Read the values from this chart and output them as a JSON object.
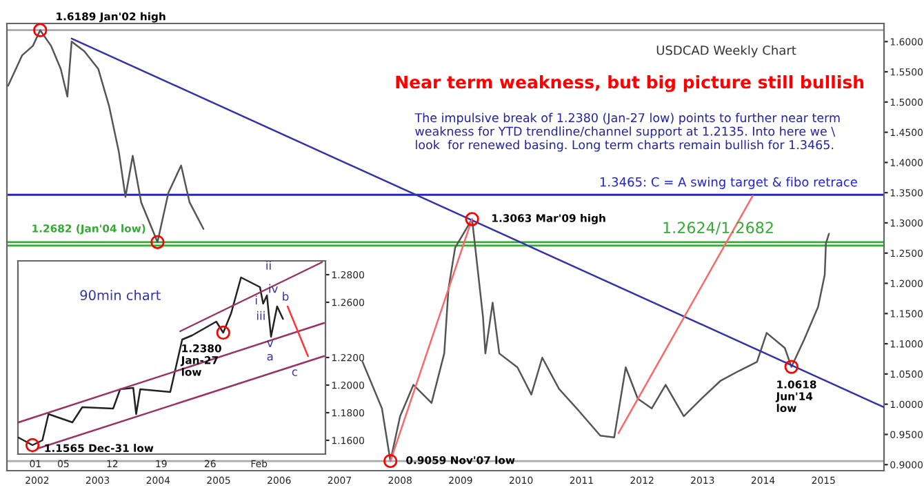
{
  "chart_data": [
    {
      "type": "line",
      "title": "USDCAD Weekly Chart",
      "subtitle": "Near term weakness, but big picture still bullish",
      "series": [
        {
          "color": "#555555",
          "x": [
            2001.52,
            2001.75,
            2001.93,
            2002.05,
            2002.23,
            2002.39,
            2002.5,
            2002.57,
            2002.78,
            2003.01,
            2003.19,
            2003.35,
            2003.46,
            2003.58,
            2003.72,
            2003.99,
            2004.17,
            2004.38,
            2004.52,
            2004.75,
            2005.5,
            2007.38,
            2007.7,
            2007.84,
            2008.0,
            2008.22,
            2008.52,
            2008.73,
            2008.8,
            2008.91,
            2009.19,
            2009.37,
            2009.41,
            2009.53,
            2009.64,
            2009.94,
            2010.17,
            2010.35,
            2010.63,
            2010.92,
            2011.31,
            2011.54,
            2011.73,
            2011.93,
            2012.16,
            2012.39,
            2012.69,
            2012.98,
            2013.3,
            2013.6,
            2013.9,
            2014.06,
            2014.36,
            2014.47,
            2014.68,
            2014.91,
            2015.02,
            2015.04,
            2015.09
          ],
          "values": [
            1.527,
            1.577,
            1.593,
            1.6189,
            1.593,
            1.555,
            1.509,
            1.6,
            1.584,
            1.555,
            1.493,
            1.418,
            1.343,
            1.411,
            1.334,
            1.2682,
            1.35,
            1.395,
            1.334,
            1.29,
            null,
            1.07,
            0.993,
            0.9059,
            0.98,
            1.032,
            1.002,
            1.084,
            1.191,
            1.259,
            1.3063,
            1.145,
            1.084,
            1.168,
            1.084,
            1.061,
            1.016,
            1.077,
            1.025,
            0.993,
            0.948,
            0.945,
            1.061,
            1.009,
            0.993,
            1.032,
            0.98,
            1.009,
            1.039,
            1.055,
            1.07,
            1.118,
            1.093,
            1.0618,
            1.107,
            1.161,
            1.214,
            1.266,
            1.282
          ]
        },
        {
          "type": "line",
          "color": "#3333aa",
          "x": [
            2002.57,
            2016.0
          ],
          "values": [
            1.605,
            0.995
          ]
        },
        {
          "type": "line",
          "color": "#ff6666",
          "x": [
            2007.84,
            2009.19
          ],
          "values": [
            0.9059,
            1.3063
          ]
        },
        {
          "type": "line",
          "color": "#ff6666",
          "x": [
            2011.61,
            2013.83
          ],
          "values": [
            0.952,
            1.345
          ]
        },
        {
          "type": "scatter",
          "marker": "circle",
          "color": "#ff0000",
          "x": [
            2002.05,
            2003.99,
            2009.19,
            2007.84,
            2014.47
          ],
          "values": [
            1.6189,
            1.2682,
            1.3063,
            0.9059,
            1.0618
          ]
        }
      ],
      "xlim": [
        2001.5,
        2016.0
      ],
      "ylim": [
        0.89,
        1.63
      ],
      "xticks": [
        2002,
        2003,
        2004,
        2005,
        2006,
        2007,
        2008,
        2009,
        2010,
        2011,
        2012,
        2013,
        2014,
        2015
      ],
      "yticks": [
        {
          "value": 0.9,
          "label": "0.9000"
        },
        {
          "value": 0.95,
          "label": "0.9500"
        },
        {
          "value": 1.0,
          "label": "1.0000"
        },
        {
          "value": 1.05,
          "label": "1.0500"
        },
        {
          "value": 1.1,
          "label": "1.1000"
        },
        {
          "value": 1.15,
          "label": "1.1500"
        },
        {
          "value": 1.2,
          "label": "1.2000"
        },
        {
          "value": 1.25,
          "label": "1.2500"
        },
        {
          "value": 1.3,
          "label": "1.3000"
        },
        {
          "value": 1.35,
          "label": "1.3500"
        },
        {
          "value": 1.4,
          "label": "1.4000"
        },
        {
          "value": 1.45,
          "label": "1.4500"
        },
        {
          "value": 1.5,
          "label": "1.5000"
        },
        {
          "value": 1.55,
          "label": "1.5500"
        },
        {
          "value": 1.6,
          "label": "1.6000"
        }
      ],
      "ref_lines": [
        {
          "axis": "y",
          "value": 1.3465,
          "label": "1.3465: C = A swing target & fibo retrace",
          "color": "#2222dd"
        },
        {
          "axis": "y",
          "value": 1.2682,
          "label": "1.2624/1.2682",
          "color": "#33aa33"
        },
        {
          "axis": "y",
          "value": 1.2624,
          "label": null,
          "color": "#33aa33"
        },
        {
          "axis": "y",
          "value": 1.6189,
          "label": null,
          "color": "#aaaaaa"
        },
        {
          "axis": "y",
          "value": 0.9059,
          "label": null,
          "color": "#aaaaaa"
        }
      ],
      "annotations": [
        {
          "text": "1.6189 Jan'02 high",
          "x": 2002.05,
          "y": 1.6189
        },
        {
          "text": "1.2682 (Jan'04 low)",
          "x": 2003.99,
          "y": 1.2682
        },
        {
          "text": "1.3063 Mar'09 high",
          "x": 2009.19,
          "y": 1.3063
        },
        {
          "text": "0.9059 Nov'07 low",
          "x": 2007.84,
          "y": 0.9059
        },
        {
          "text": "1.0618\nJun'14\nlow",
          "x": 2014.47,
          "y": 1.0618
        },
        "The impulsive break of 1.2380 (Jan-27 low) points to further near term\nweakness for YTD trendline/channel support at 1.2135. Into here we \\\nlook  for renewed basing. Long term charts remain bullish for 1.3465."
      ]
    },
    {
      "type": "line",
      "series": [
        {
          "color": "#222222",
          "x": [
            "2014-12-29T14:00",
            "2014-12-31T14:00",
            "2015-01-02T00:00",
            "2015-01-02T21:00",
            "2015-01-06T07:00",
            "2015-01-07T17:00",
            "2015-01-12T03:00",
            "2015-01-13T03:00",
            "2015-01-15T00:00",
            "2015-01-15T10:00",
            "2015-01-16T00:00",
            "2015-01-20T07:00",
            "2015-01-20T21:00",
            "2015-01-22T00:00",
            "2015-01-23T10:00",
            "2015-01-26T21:00",
            "2015-01-27T21:00",
            "2015-01-29T00:00",
            "2015-01-30T10:00",
            "2015-02-02T03:00",
            "2015-02-02T14:00",
            "2015-02-03T03:00",
            "2015-02-03T17:00",
            "2015-02-04T14:00",
            "2015-02-05T10:00"
          ],
          "values": [
            1.162,
            1.1565,
            1.16,
            1.179,
            1.173,
            1.184,
            1.183,
            1.197,
            1.198,
            1.179,
            1.197,
            1.195,
            1.208,
            1.233,
            1.236,
            1.246,
            1.238,
            1.252,
            1.278,
            1.271,
            1.259,
            1.265,
            1.235,
            1.257,
            1.248
          ]
        },
        {
          "color": "#993366",
          "x": [
            "2015-01-21T17:00",
            "2015-02-11T00:00"
          ],
          "values": [
            1.239,
            1.289
          ]
        },
        {
          "color": "#993366",
          "x": [
            "2014-12-29T14:00",
            "2015-02-11T07:00"
          ],
          "values": [
            1.173,
            1.245
          ]
        },
        {
          "color": "#993366",
          "x": [
            "2015-01-01T07:00",
            "2015-02-11T07:00"
          ],
          "values": [
            1.154,
            1.221
          ]
        },
        {
          "color": "#ff3333",
          "x": [
            "2015-02-06T02:00",
            "2015-02-09T00:00"
          ],
          "values": [
            1.257,
            1.221
          ]
        },
        {
          "type": "scatter",
          "marker": "circle",
          "color": "#ff0000",
          "x": [
            "2015-01-27T21:00",
            "2014-12-31T14:00"
          ],
          "values": [
            1.238,
            1.1565
          ]
        }
      ],
      "xlim": [
        "2014-12-29T12:00",
        "2015-02-11T12:00"
      ],
      "ylim": [
        1.15,
        1.29
      ],
      "xticks": [
        {
          "value": "2015-01-01",
          "label": "01"
        },
        {
          "value": "2015-01-05",
          "label": "05"
        },
        {
          "value": "2015-01-12",
          "label": "12"
        },
        {
          "value": "2015-01-19",
          "label": "19"
        },
        {
          "value": "2015-01-26",
          "label": "26"
        },
        {
          "value": "2015-02-02",
          "label": "Feb"
        }
      ],
      "yticks": [
        {
          "value": 1.16,
          "label": "1.1600"
        },
        {
          "value": 1.18,
          "label": "1.1800"
        },
        {
          "value": 1.2,
          "label": "1.2000"
        },
        {
          "value": 1.22,
          "label": "1.2200"
        },
        {
          "value": 1.26,
          "label": "1.2600"
        },
        {
          "value": 1.28,
          "label": "1.2800"
        }
      ],
      "annotations": [
        "90min chart",
        {
          "text": "1.2380\nJan-27\nlow",
          "x": "2015-01-27T21:00",
          "y": 1.238
        },
        {
          "text": "1.1565 Dec-31 low",
          "x": "2014-12-31T14:00",
          "y": 1.1565
        },
        "ii",
        "i",
        "iii",
        "iv",
        "b",
        "v",
        "a",
        "c"
      ]
    }
  ]
}
